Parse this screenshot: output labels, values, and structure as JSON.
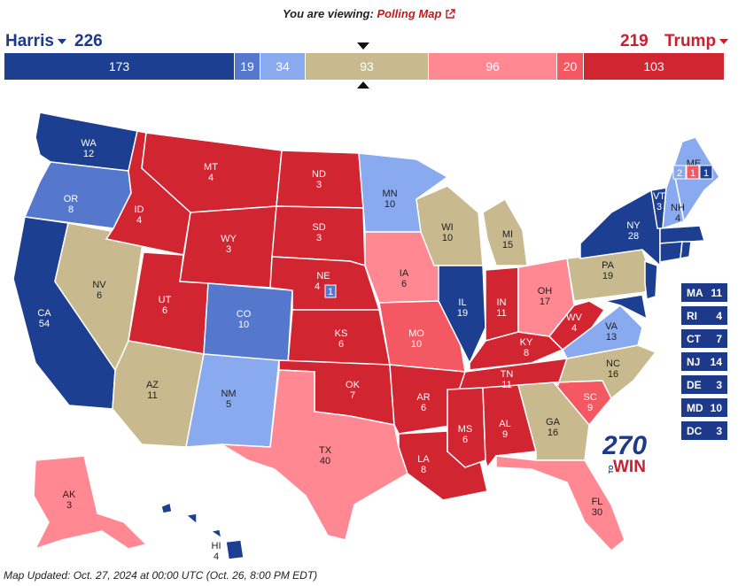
{
  "header": {
    "viewing_prefix": "You are viewing:",
    "viewing_link": "Polling Map"
  },
  "candidates": {
    "harris": {
      "name": "Harris",
      "total": "226"
    },
    "trump": {
      "name": "Trump",
      "total": "219"
    }
  },
  "bar": [
    {
      "value": "173",
      "color": "#1d3f91",
      "width": 259
    },
    {
      "value": "19",
      "color": "#5577cc",
      "width": 29
    },
    {
      "value": "34",
      "color": "#8aaaf0",
      "width": 51
    },
    {
      "value": "93",
      "color": "#c8b98f",
      "width": 139
    },
    {
      "value": "96",
      "color": "#ff8893",
      "width": 145
    },
    {
      "value": "20",
      "color": "#f35863",
      "width": 30
    },
    {
      "value": "103",
      "color": "#d22532",
      "width": 159
    }
  ],
  "states": {
    "WA": {
      "abbr": "WA",
      "ev": "12",
      "color": "#1d3f91"
    },
    "OR": {
      "abbr": "OR",
      "ev": "8",
      "color": "#5577cc"
    },
    "CA": {
      "abbr": "CA",
      "ev": "54",
      "color": "#1d3f91"
    },
    "NV": {
      "abbr": "NV",
      "ev": "6",
      "color": "#c8b98f"
    },
    "ID": {
      "abbr": "ID",
      "ev": "4",
      "color": "#d22532"
    },
    "MT": {
      "abbr": "MT",
      "ev": "4",
      "color": "#d22532"
    },
    "WY": {
      "abbr": "WY",
      "ev": "3",
      "color": "#d22532"
    },
    "UT": {
      "abbr": "UT",
      "ev": "6",
      "color": "#d22532"
    },
    "AZ": {
      "abbr": "AZ",
      "ev": "11",
      "color": "#c8b98f"
    },
    "CO": {
      "abbr": "CO",
      "ev": "10",
      "color": "#5577cc"
    },
    "NM": {
      "abbr": "NM",
      "ev": "5",
      "color": "#8aaaf0"
    },
    "ND": {
      "abbr": "ND",
      "ev": "3",
      "color": "#d22532"
    },
    "SD": {
      "abbr": "SD",
      "ev": "3",
      "color": "#d22532"
    },
    "NE": {
      "abbr": "NE",
      "ev": "4",
      "color": "#d22532"
    },
    "KS": {
      "abbr": "KS",
      "ev": "6",
      "color": "#d22532"
    },
    "OK": {
      "abbr": "OK",
      "ev": "7",
      "color": "#d22532"
    },
    "TX": {
      "abbr": "TX",
      "ev": "40",
      "color": "#ff8893"
    },
    "MN": {
      "abbr": "MN",
      "ev": "10",
      "color": "#8aaaf0"
    },
    "IA": {
      "abbr": "IA",
      "ev": "6",
      "color": "#ff8893"
    },
    "MO": {
      "abbr": "MO",
      "ev": "10",
      "color": "#f35863"
    },
    "AR": {
      "abbr": "AR",
      "ev": "6",
      "color": "#d22532"
    },
    "LA": {
      "abbr": "LA",
      "ev": "8",
      "color": "#d22532"
    },
    "WI": {
      "abbr": "WI",
      "ev": "10",
      "color": "#c8b98f"
    },
    "IL": {
      "abbr": "IL",
      "ev": "19",
      "color": "#1d3f91"
    },
    "MI": {
      "abbr": "MI",
      "ev": "15",
      "color": "#c8b98f"
    },
    "IN": {
      "abbr": "IN",
      "ev": "11",
      "color": "#d22532"
    },
    "OH": {
      "abbr": "OH",
      "ev": "17",
      "color": "#ff8893"
    },
    "KY": {
      "abbr": "KY",
      "ev": "8",
      "color": "#d22532"
    },
    "TN": {
      "abbr": "TN",
      "ev": "11",
      "color": "#d22532"
    },
    "MS": {
      "abbr": "MS",
      "ev": "6",
      "color": "#d22532"
    },
    "AL": {
      "abbr": "AL",
      "ev": "9",
      "color": "#d22532"
    },
    "GA": {
      "abbr": "GA",
      "ev": "16",
      "color": "#c8b98f"
    },
    "FL": {
      "abbr": "FL",
      "ev": "30",
      "color": "#ff8893"
    },
    "SC": {
      "abbr": "SC",
      "ev": "9",
      "color": "#f35863"
    },
    "NC": {
      "abbr": "NC",
      "ev": "16",
      "color": "#c8b98f"
    },
    "VA": {
      "abbr": "VA",
      "ev": "13",
      "color": "#8aaaf0"
    },
    "WV": {
      "abbr": "WV",
      "ev": "4",
      "color": "#d22532"
    },
    "PA": {
      "abbr": "PA",
      "ev": "19",
      "color": "#c8b98f"
    },
    "NY": {
      "abbr": "NY",
      "ev": "28",
      "color": "#1d3f91"
    },
    "VT": {
      "abbr": "VT",
      "ev": "3",
      "color": "#1d3f91"
    },
    "NH": {
      "abbr": "NH",
      "ev": "4",
      "color": "#8aaaf0"
    },
    "ME": {
      "abbr": "ME",
      "ev": "",
      "color": "#8aaaf0"
    },
    "AK": {
      "abbr": "AK",
      "ev": "3",
      "color": "#ff8893"
    },
    "HI": {
      "abbr": "HI",
      "ev": "4",
      "color": "#1d3f91"
    }
  },
  "district_splits": {
    "me_lean": "2",
    "me_d2": "1",
    "me_d1": "1",
    "ne_d2": "1"
  },
  "small_states": [
    {
      "abbr": "MA",
      "ev": "11"
    },
    {
      "abbr": "RI",
      "ev": "4"
    },
    {
      "abbr": "CT",
      "ev": "7"
    },
    {
      "abbr": "NJ",
      "ev": "14"
    },
    {
      "abbr": "DE",
      "ev": "3"
    },
    {
      "abbr": "MD",
      "ev": "10"
    },
    {
      "abbr": "DC",
      "ev": "3"
    }
  ],
  "logo": {
    "number": "270",
    "to": "TO",
    "win": "WIN"
  },
  "footer": {
    "updated": "Map Updated: Oct. 27, 2024 at 00:00 UTC (Oct. 26, 8:00 PM EDT)"
  }
}
